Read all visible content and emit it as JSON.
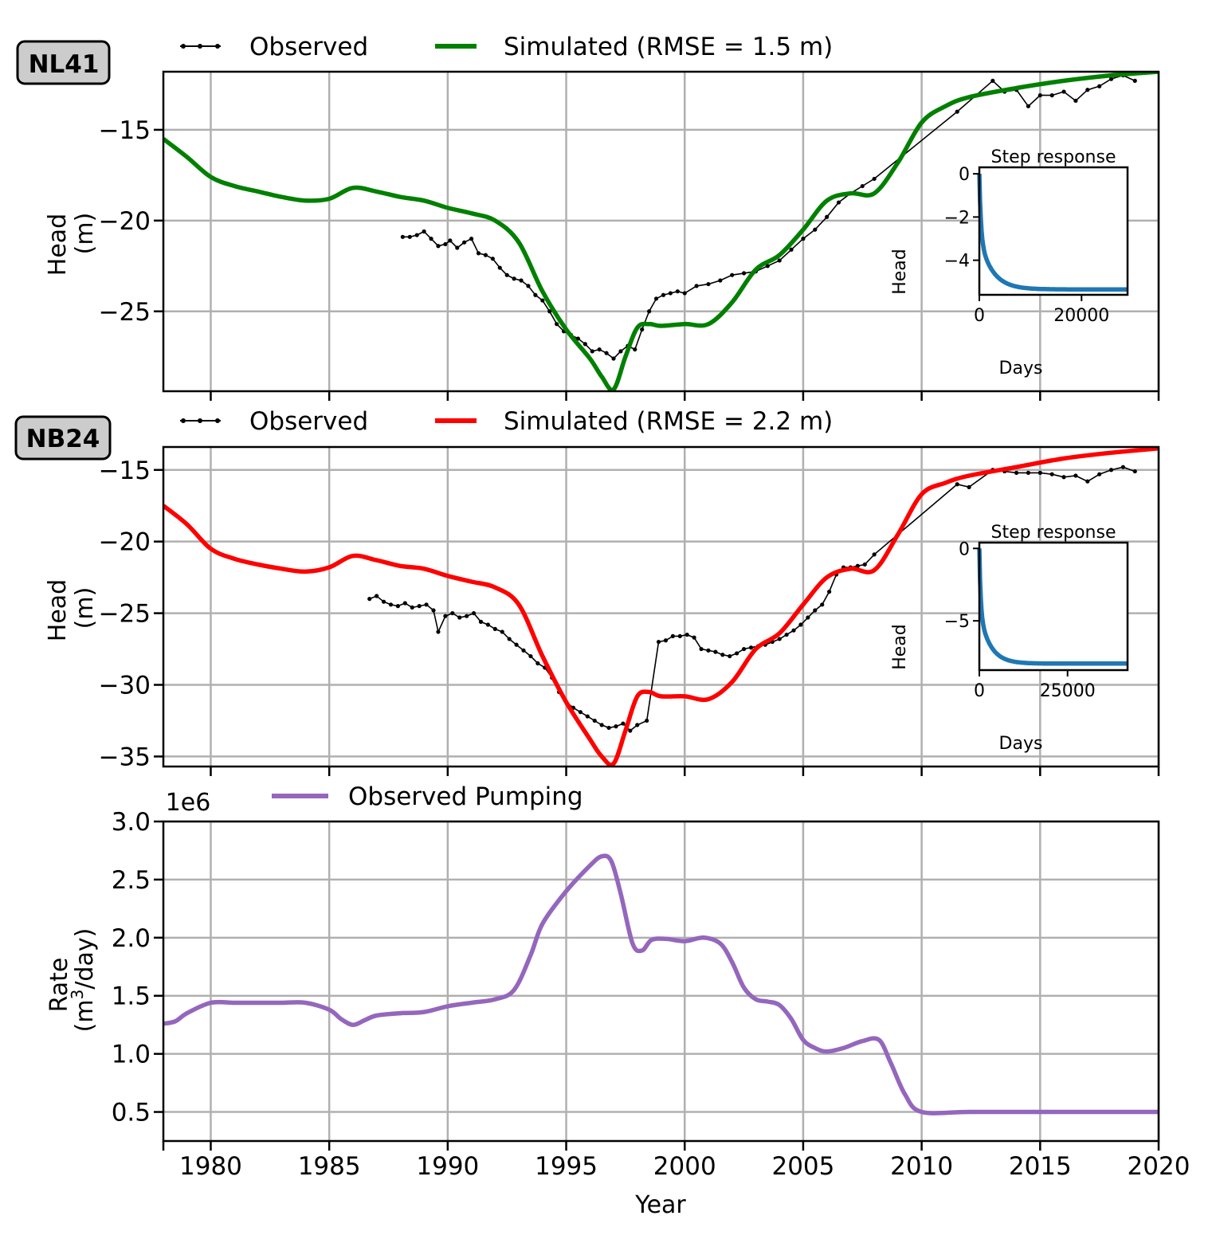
{
  "chart_data": [
    {
      "type": "line",
      "panel_label": "NL41",
      "xlabel": "",
      "ylabel": "Head",
      "ylabel_unit": "(m)",
      "xlim": [
        1978,
        2020
      ],
      "ylim": [
        -29.4,
        -11.8
      ],
      "yticks": [
        -15,
        -20,
        -25
      ],
      "ytick_labels": [
        "−15",
        "−20",
        "−25"
      ],
      "xticks": [
        1980,
        1985,
        1990,
        1995,
        2000,
        2005,
        2010,
        2015,
        2020
      ],
      "grid": true,
      "legend_position": "top-center",
      "series": [
        {
          "name": "Observed",
          "color": "#000000",
          "style": "line-with-dots",
          "x": [
            1988.1,
            1988.4,
            1988.7,
            1989.0,
            1989.3,
            1989.6,
            1989.9,
            1990.1,
            1990.4,
            1990.7,
            1991.0,
            1991.3,
            1991.6,
            1991.9,
            1992.2,
            1992.5,
            1992.8,
            1993.1,
            1993.4,
            1993.7,
            1994.0,
            1994.3,
            1994.6,
            1994.9,
            1995.2,
            1995.5,
            1995.8,
            1996.1,
            1996.4,
            1996.7,
            1997.0,
            1997.3,
            1997.6,
            1997.9,
            1998.2,
            1998.5,
            1998.8,
            1999.1,
            1999.4,
            1999.7,
            2000.0,
            2000.5,
            2001.0,
            2001.5,
            2002.0,
            2002.5,
            2003.0,
            2003.5,
            2004.0,
            2004.5,
            2005.0,
            2005.5,
            2006.0,
            2006.5,
            2007.0,
            2007.5,
            2008.0,
            2011.5,
            2013.0,
            2013.5,
            2014.0,
            2014.5,
            2015.0,
            2015.5,
            2016.0,
            2016.5,
            2017.0,
            2017.5,
            2018.0,
            2018.5,
            2019.0
          ],
          "y": [
            -20.9,
            -20.9,
            -20.8,
            -20.6,
            -21.0,
            -21.4,
            -21.3,
            -21.1,
            -21.5,
            -21.2,
            -21.0,
            -21.8,
            -21.9,
            -22.1,
            -22.6,
            -23.0,
            -23.2,
            -23.3,
            -23.6,
            -24.1,
            -24.4,
            -25.0,
            -25.7,
            -26.1,
            -26.3,
            -26.5,
            -26.8,
            -27.2,
            -27.1,
            -27.3,
            -27.6,
            -27.2,
            -26.9,
            -27.1,
            -26.0,
            -25.0,
            -24.3,
            -24.1,
            -24.0,
            -23.9,
            -24.0,
            -23.6,
            -23.5,
            -23.3,
            -23.0,
            -22.9,
            -22.8,
            -22.5,
            -22.2,
            -21.6,
            -21.0,
            -20.5,
            -19.8,
            -19.0,
            -18.5,
            -18.1,
            -17.7,
            -14.0,
            -12.3,
            -12.9,
            -12.8,
            -13.7,
            -13.1,
            -13.1,
            -12.9,
            -13.4,
            -12.8,
            -12.6,
            -12.2,
            -12.0,
            -12.3
          ]
        },
        {
          "name": "Simulated (RMSE = 1.5 m)",
          "color": "#008000",
          "style": "line",
          "x": [
            1978,
            1979,
            1980,
            1981,
            1982,
            1983,
            1984,
            1985,
            1986,
            1987,
            1988,
            1989,
            1990,
            1991,
            1992,
            1993,
            1994,
            1995,
            1996,
            1996.5,
            1997,
            1997.5,
            1998,
            1998.5,
            1999,
            2000,
            2001,
            2002,
            2003,
            2004,
            2005,
            2006,
            2007,
            2008,
            2009,
            2010,
            2011,
            2012,
            2014,
            2016,
            2018,
            2020
          ],
          "y": [
            -15.5,
            -16.5,
            -17.6,
            -18.1,
            -18.4,
            -18.7,
            -18.9,
            -18.8,
            -18.2,
            -18.4,
            -18.7,
            -18.9,
            -19.3,
            -19.6,
            -20.0,
            -21.2,
            -23.9,
            -26.0,
            -27.6,
            -28.6,
            -29.3,
            -27.5,
            -25.9,
            -25.7,
            -25.8,
            -25.7,
            -25.7,
            -24.5,
            -22.7,
            -21.9,
            -20.5,
            -18.9,
            -18.5,
            -18.5,
            -16.8,
            -14.6,
            -13.7,
            -13.2,
            -12.7,
            -12.3,
            -12.0,
            -11.8
          ]
        }
      ],
      "inset": {
        "title": "Step response",
        "xlabel": "Days",
        "ylabel": "Head",
        "xlim": [
          0,
          29000
        ],
        "ylim": [
          -5.6,
          0.3
        ],
        "xticks": [
          0,
          20000
        ],
        "xtick_labels": [
          "0",
          "20000"
        ],
        "yticks": [
          0,
          -2,
          -4
        ],
        "ytick_labels": [
          "0",
          "−2",
          "−4"
        ],
        "color": "#1f77b4",
        "final_value": -5.35,
        "time_scale_days": 2500
      }
    },
    {
      "type": "line",
      "panel_label": "NB24",
      "xlabel": "",
      "ylabel": "Head",
      "ylabel_unit": "(m)",
      "xlim": [
        1978,
        2020
      ],
      "ylim": [
        -35.7,
        -13.4
      ],
      "yticks": [
        -15,
        -20,
        -25,
        -30,
        -35
      ],
      "ytick_labels": [
        "−15",
        "−20",
        "−25",
        "−30",
        "−35"
      ],
      "xticks": [
        1980,
        1985,
        1990,
        1995,
        2000,
        2005,
        2010,
        2015,
        2020
      ],
      "grid": true,
      "legend_position": "top-center",
      "series": [
        {
          "name": "Observed",
          "color": "#000000",
          "style": "line-with-dots",
          "x": [
            1986.7,
            1987.0,
            1987.3,
            1987.6,
            1987.9,
            1988.2,
            1988.5,
            1988.8,
            1989.1,
            1989.4,
            1989.6,
            1989.9,
            1990.2,
            1990.5,
            1990.8,
            1991.1,
            1991.4,
            1991.7,
            1992.0,
            1992.3,
            1992.6,
            1992.9,
            1993.2,
            1993.5,
            1993.8,
            1994.1,
            1994.4,
            1994.7,
            1995.0,
            1995.3,
            1995.6,
            1995.9,
            1996.2,
            1996.5,
            1996.8,
            1997.1,
            1997.4,
            1997.7,
            1998.0,
            1998.4,
            1998.9,
            1999.2,
            1999.5,
            1999.8,
            2000.1,
            2000.4,
            2000.7,
            2001.0,
            2001.3,
            2001.6,
            2001.9,
            2002.2,
            2002.5,
            2002.8,
            2003.1,
            2003.4,
            2003.7,
            2004.0,
            2004.3,
            2004.6,
            2004.9,
            2005.2,
            2005.5,
            2005.8,
            2006.1,
            2006.4,
            2006.7,
            2007.0,
            2007.3,
            2007.6,
            2008.0,
            2011.5,
            2012.0,
            2013.0,
            2013.5,
            2014.0,
            2014.5,
            2015.0,
            2015.5,
            2016.0,
            2016.5,
            2017.0,
            2017.5,
            2018.0,
            2018.5,
            2019.0
          ],
          "y": [
            -24.0,
            -23.8,
            -24.2,
            -24.4,
            -24.5,
            -24.3,
            -24.6,
            -24.5,
            -24.4,
            -24.8,
            -26.3,
            -25.2,
            -25.0,
            -25.3,
            -25.2,
            -25.0,
            -25.6,
            -25.8,
            -26.1,
            -26.3,
            -26.8,
            -27.2,
            -27.6,
            -28.0,
            -28.5,
            -28.8,
            -29.5,
            -30.5,
            -31.2,
            -31.6,
            -31.9,
            -32.2,
            -32.5,
            -32.8,
            -33.0,
            -32.9,
            -32.7,
            -33.2,
            -32.8,
            -32.5,
            -27.0,
            -26.9,
            -26.6,
            -26.6,
            -26.5,
            -26.7,
            -27.5,
            -27.6,
            -27.7,
            -27.9,
            -28.0,
            -27.8,
            -27.5,
            -27.4,
            -27.3,
            -27.2,
            -27.0,
            -26.8,
            -26.5,
            -26.2,
            -25.8,
            -25.3,
            -24.8,
            -24.4,
            -23.5,
            -22.3,
            -21.8,
            -21.8,
            -21.7,
            -21.6,
            -20.9,
            -16.0,
            -16.2,
            -15.0,
            -15.1,
            -15.2,
            -15.2,
            -15.2,
            -15.3,
            -15.5,
            -15.4,
            -15.8,
            -15.3,
            -15.0,
            -14.8,
            -15.1
          ]
        },
        {
          "name": "Simulated (RMSE = 2.2 m)",
          "color": "#ff0000",
          "style": "line",
          "x": [
            1978,
            1979,
            1980,
            1981,
            1982,
            1983,
            1984,
            1985,
            1986,
            1987,
            1988,
            1989,
            1990,
            1991,
            1992,
            1993,
            1994,
            1995,
            1996,
            1996.5,
            1997,
            1997.5,
            1998,
            1998.5,
            1999,
            2000,
            2001,
            2002,
            2003,
            2004,
            2005,
            2006,
            2007,
            2008,
            2009,
            2010,
            2011,
            2012,
            2014,
            2016,
            2018,
            2020
          ],
          "y": [
            -17.5,
            -18.8,
            -20.5,
            -21.2,
            -21.6,
            -21.9,
            -22.1,
            -21.8,
            -21.0,
            -21.3,
            -21.7,
            -21.9,
            -22.4,
            -22.8,
            -23.2,
            -24.4,
            -28.0,
            -31.2,
            -33.8,
            -35.0,
            -35.5,
            -33.2,
            -30.8,
            -30.5,
            -30.8,
            -30.8,
            -31.0,
            -29.8,
            -27.5,
            -26.4,
            -24.4,
            -22.5,
            -21.9,
            -22.0,
            -19.5,
            -16.7,
            -15.9,
            -15.4,
            -14.8,
            -14.2,
            -13.8,
            -13.5
          ]
        }
      ],
      "inset": {
        "title": "Step response",
        "xlabel": "Days",
        "ylabel": "Head",
        "xlim": [
          0,
          42000
        ],
        "ylim": [
          -8.4,
          0.4
        ],
        "xticks": [
          0,
          25000
        ],
        "xtick_labels": [
          "0",
          "25000"
        ],
        "yticks": [
          0,
          -5
        ],
        "ytick_labels": [
          "0",
          "−5"
        ],
        "color": "#1f77b4",
        "final_value": -7.95,
        "time_scale_days": 3000
      }
    },
    {
      "type": "line",
      "xlabel": "Year",
      "ylabel": "Rate",
      "ylabel_unit": "(m3/day)",
      "ylabel_unit_parts": [
        "(m",
        "3",
        "/day)"
      ],
      "scale_label": "1e6",
      "xlim": [
        1978,
        2020
      ],
      "ylim": [
        0.25,
        3.0
      ],
      "yticks": [
        0.5,
        1.0,
        1.5,
        2.0,
        2.5,
        3.0
      ],
      "ytick_labels": [
        "0.5",
        "1.0",
        "1.5",
        "2.0",
        "2.5",
        "3.0"
      ],
      "xticks": [
        1980,
        1985,
        1990,
        1995,
        2000,
        2005,
        2010,
        2015,
        2020
      ],
      "xtick_labels": [
        "1980",
        "1985",
        "1990",
        "1995",
        "2000",
        "2005",
        "2010",
        "2015",
        "2020"
      ],
      "grid": true,
      "legend_position": "top-left",
      "series": [
        {
          "name": "Observed Pumping",
          "color": "#9467bd",
          "style": "line",
          "x": [
            1978,
            1978.5,
            1979,
            1980,
            1981,
            1982,
            1983,
            1984,
            1985,
            1985.5,
            1986,
            1986.5,
            1987,
            1988,
            1989,
            1990,
            1991,
            1992,
            1992.8,
            1993.5,
            1994,
            1995,
            1996,
            1996.5,
            1996.9,
            1997.3,
            1997.8,
            1998.2,
            1998.6,
            1999.2,
            2000,
            2000.8,
            2001.5,
            2002,
            2002.5,
            2003,
            2003.5,
            2004,
            2004.5,
            2005,
            2005.5,
            2006,
            2006.7,
            2007.5,
            2008.2,
            2008.7,
            2009.3,
            2010,
            2012,
            2015,
            2018,
            2020
          ],
          "y": [
            1.26,
            1.28,
            1.35,
            1.44,
            1.44,
            1.44,
            1.44,
            1.44,
            1.38,
            1.3,
            1.25,
            1.29,
            1.33,
            1.35,
            1.36,
            1.41,
            1.44,
            1.47,
            1.55,
            1.85,
            2.12,
            2.4,
            2.62,
            2.7,
            2.66,
            2.38,
            1.95,
            1.89,
            1.98,
            1.99,
            1.97,
            2.0,
            1.95,
            1.79,
            1.57,
            1.47,
            1.45,
            1.42,
            1.3,
            1.12,
            1.05,
            1.02,
            1.05,
            1.11,
            1.12,
            0.92,
            0.65,
            0.5,
            0.5,
            0.5,
            0.5,
            0.5
          ]
        }
      ]
    }
  ],
  "colors": {
    "grid": "#b0b0b0",
    "axes": "#000000",
    "label_box_fill": "#cccccc"
  }
}
